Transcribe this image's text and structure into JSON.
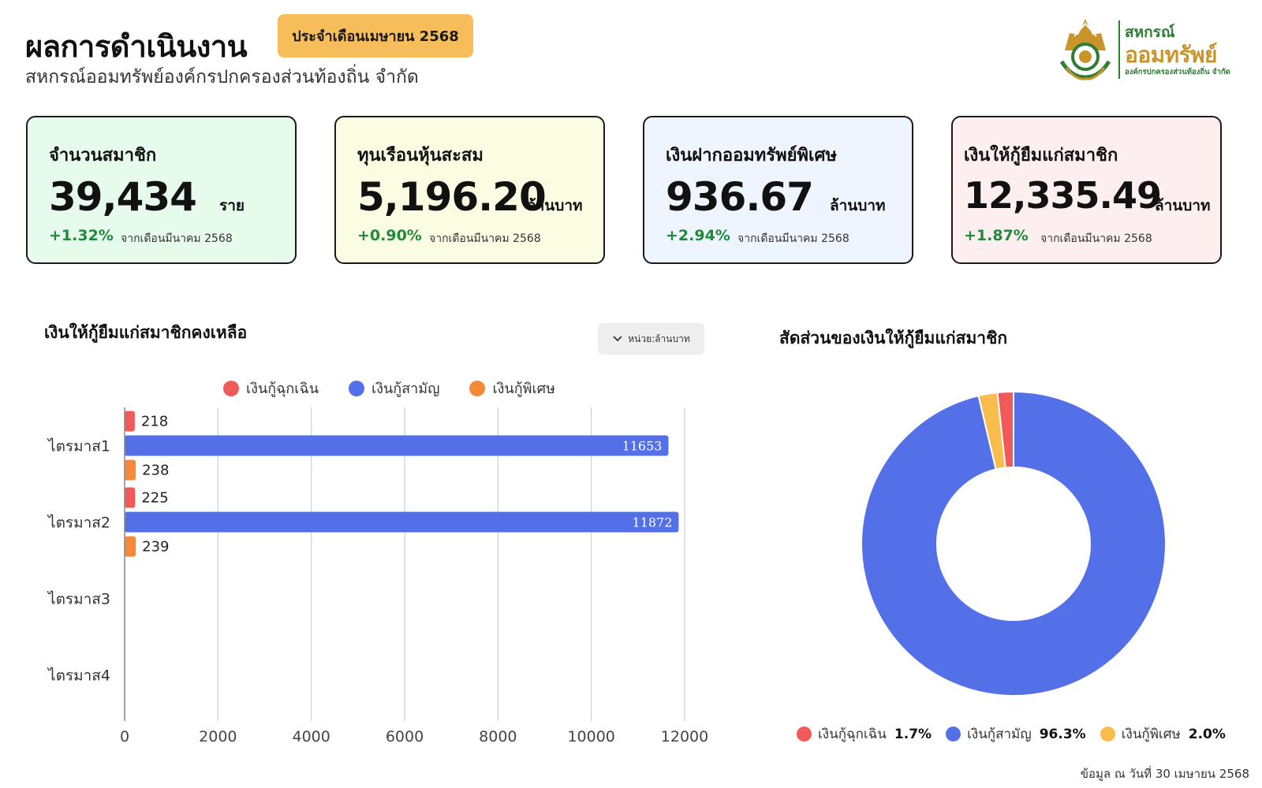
{
  "header": {
    "title": "ผลการดำเนินงาน",
    "subtitle": "สหกรณ์ออมทรัพย์องค์กรปกครองส่วนท้องถิ่น จำกัด",
    "badge": "ประจำเดือนเมษายน 2568"
  },
  "logo": {
    "line1": "สหกรณ์",
    "line2": "ออมทรัพย์",
    "line3": "องค์กรปกครองส่วนท้องถิ่น จำกัด"
  },
  "cards": [
    {
      "title": "จำนวนสมาชิก",
      "value": "39,434",
      "unit": "ราย",
      "change": "+1.32%",
      "note": "จากเดือนมีนาคม 2568",
      "bg": "#e6fbec"
    },
    {
      "title": "ทุนเรือนหุ้นสะสม",
      "value": "5,196.20",
      "unit": "ล้านบาท",
      "change": "+0.90%",
      "note": "จากเดือนมีนาคม 2568",
      "bg": "#fbfde3"
    },
    {
      "title": "เงินฝากออมทรัพย์พิเศษ",
      "value": "936.67",
      "unit": "ล้านบาท",
      "change": "+2.94%",
      "note": "จากเดือนมีนาคม 2568",
      "bg": "#eef5ff"
    },
    {
      "title": "เงินให้กู้ยืมแก่สมาชิก",
      "value": "12,335.49",
      "unit": "ล้านบาท",
      "change": "+1.87%",
      "note": "จากเดือนมีนาคม 2568",
      "bg": "#fdefef"
    }
  ],
  "bar_section": {
    "title": "เงินให้กู้ยืมแก่สมาชิกคงเหลือ",
    "unit_button": "หน่วย:ล้านบาท"
  },
  "pie_section": {
    "title": "สัดส่วนของเงินให้กู้ยืมแก่สมาชิก"
  },
  "footnote": "ข้อมูล ณ วันที่ 30 เมษายน 2568",
  "chart_data": [
    {
      "type": "bar",
      "orientation": "horizontal",
      "categories": [
        "ไตรมาส1",
        "ไตรมาส2",
        "ไตรมาส3",
        "ไตรมาส4"
      ],
      "series": [
        {
          "name": "เงินกู้ฉุกเฉิน",
          "values": [
            218,
            225,
            null,
            null
          ],
          "color": "#f25a5a"
        },
        {
          "name": "เงินกู้สามัญ",
          "values": [
            11653,
            11872,
            null,
            null
          ],
          "color": "#5470e8"
        },
        {
          "name": "เงินกู้พิเศษ",
          "values": [
            238,
            239,
            null,
            null
          ],
          "color": "#f78a38"
        }
      ],
      "xlim": [
        0,
        12000
      ],
      "xticks": [
        0,
        2000,
        4000,
        6000,
        8000,
        10000,
        12000
      ],
      "grid": true,
      "legend": "top"
    },
    {
      "type": "pie",
      "donut": true,
      "slices": [
        {
          "name": "เงินกู้ฉุกเฉิน",
          "value": 1.7,
          "label": "1.7%",
          "color": "#f25a5a"
        },
        {
          "name": "เงินกู้สามัญ",
          "value": 96.3,
          "label": "96.3%",
          "color": "#5470e8"
        },
        {
          "name": "เงินกู้พิเศษ",
          "value": 2.0,
          "label": "2.0%",
          "color": "#f9bd4e"
        }
      ],
      "legend": "bottom"
    }
  ]
}
